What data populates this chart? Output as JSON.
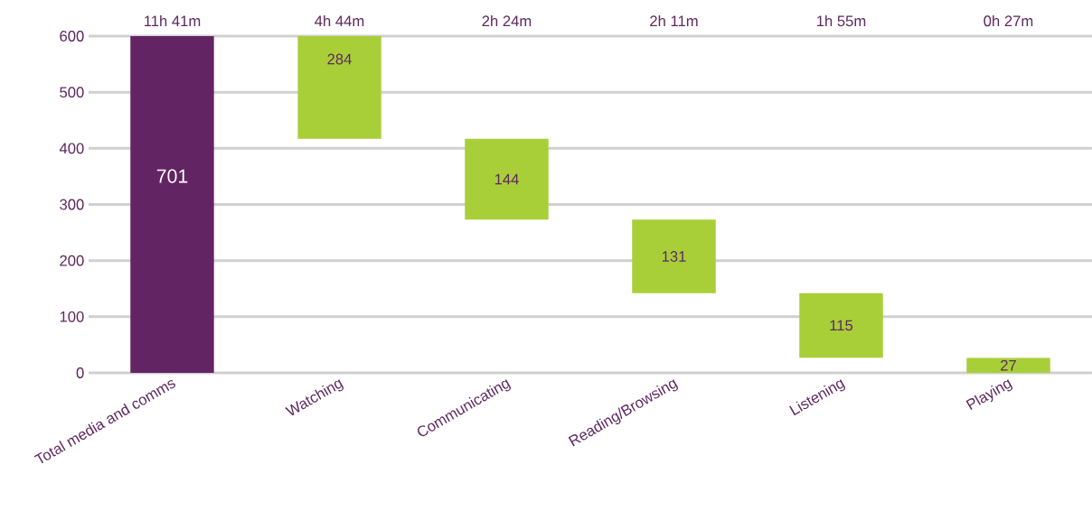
{
  "chart_data": {
    "type": "bar",
    "categories": [
      "Total media and comms",
      "Watching",
      "Communicating",
      "Reading/Browsing",
      "Listening",
      "Playing"
    ],
    "values": [
      701,
      284,
      144,
      131,
      115,
      27
    ],
    "base": [
      0,
      417,
      273,
      142,
      27,
      0
    ],
    "colors": [
      "#622463",
      "#a8cf38",
      "#a8cf38",
      "#a8cf38",
      "#a8cf38",
      "#a8cf38"
    ],
    "ylim": [
      0,
      600
    ],
    "yticks": [
      0,
      100,
      200,
      300,
      400,
      500,
      600
    ],
    "grid": "y",
    "data_labels": true,
    "annotations": [
      "11h 41m",
      "4h 44m",
      "2h 24m",
      "2h 11m",
      "1h 55m",
      "0h 27m"
    ]
  }
}
